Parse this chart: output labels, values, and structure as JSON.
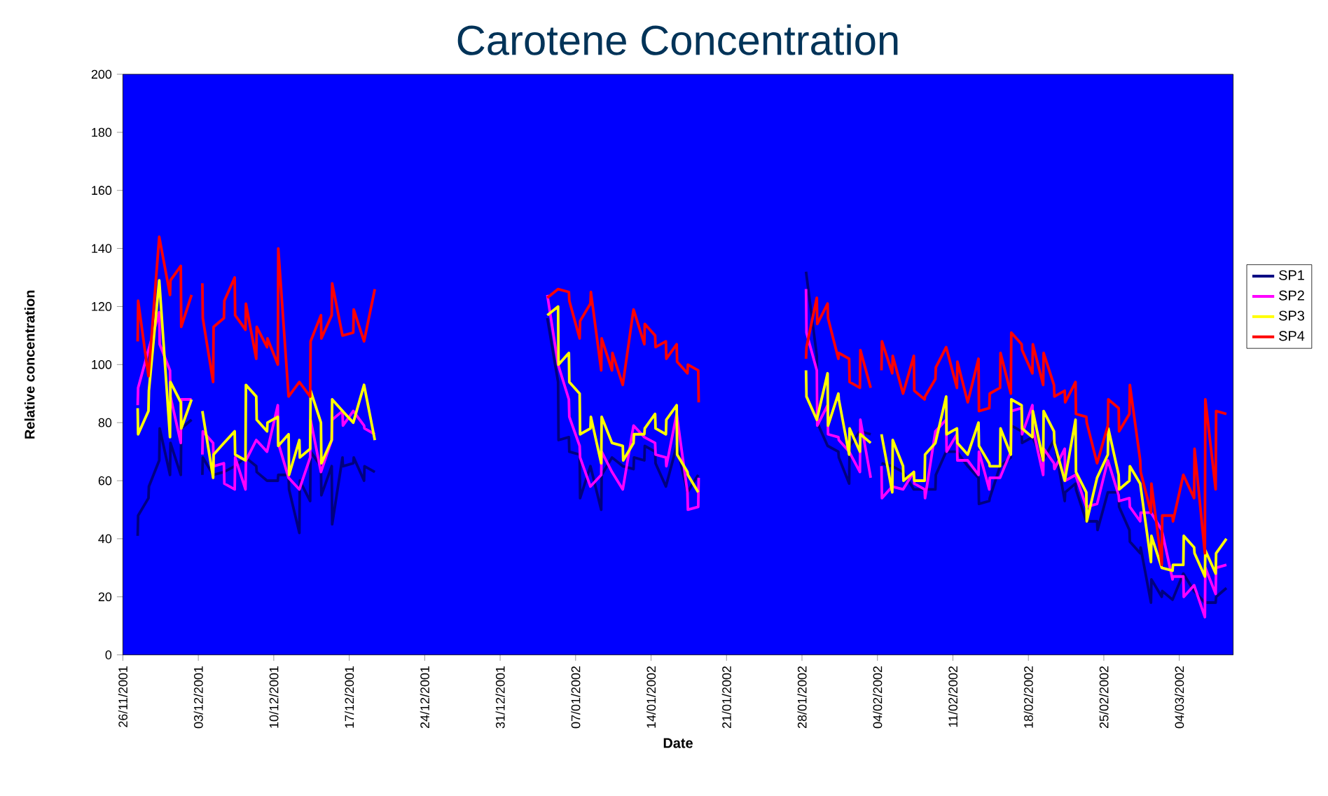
{
  "chart_data": {
    "type": "line",
    "title": "Carotene Concentration",
    "xlabel": "Date",
    "ylabel": "Relative concentration",
    "xlim": [
      "2001-11-26",
      "2002-03-09"
    ],
    "ylim": [
      0,
      200
    ],
    "yticks": [
      0,
      20,
      40,
      60,
      80,
      100,
      120,
      140,
      160,
      180,
      200
    ],
    "xticks": [
      {
        "value": "2001-11-26",
        "label": "26/11/2001"
      },
      {
        "value": "2001-12-03",
        "label": "03/12/2001"
      },
      {
        "value": "2001-12-10",
        "label": "10/12/2001"
      },
      {
        "value": "2001-12-17",
        "label": "17/12/2001"
      },
      {
        "value": "2001-12-24",
        "label": "24/12/2001"
      },
      {
        "value": "2001-12-31",
        "label": "31/12/2001"
      },
      {
        "value": "2002-01-07",
        "label": "07/01/2002"
      },
      {
        "value": "2002-01-14",
        "label": "14/01/2002"
      },
      {
        "value": "2002-01-21",
        "label": "21/01/2002"
      },
      {
        "value": "2002-01-28",
        "label": "28/01/2002"
      },
      {
        "value": "2002-02-04",
        "label": "04/02/2002"
      },
      {
        "value": "2002-02-11",
        "label": "11/02/2002"
      },
      {
        "value": "2002-02-18",
        "label": "18/02/2002"
      },
      {
        "value": "2002-02-25",
        "label": "25/02/2002"
      },
      {
        "value": "2002-03-04",
        "label": "04/03/2002"
      }
    ],
    "legend": "right",
    "series": [
      {
        "name": "SP1",
        "color": "#000080",
        "x": [
          "2001-11-27T09:00",
          "2001-11-27T10:00",
          "2001-11-28T09:00",
          "2001-11-28T10:00",
          "2001-11-29T09:00",
          "2001-11-29T10:00",
          "2001-11-30T09:00",
          "2001-11-30T10:00",
          "2001-12-01T09:00",
          "2001-12-01T10:00",
          "2001-12-02T09:00",
          "2001-12-02T21:00",
          "2001-12-03T09:00",
          "2001-12-03T10:00",
          "2001-12-04T09:00",
          "2001-12-05T09:00",
          "2001-12-06T09:00",
          "2001-12-07T09:00",
          "2001-12-08T09:00",
          "2001-12-08T10:00",
          "2001-12-09T09:00",
          "2001-12-10T09:00",
          "2001-12-10T10:00",
          "2001-12-11T09:00",
          "2001-12-11T10:00",
          "2001-12-12T09:00",
          "2001-12-12T10:00",
          "2001-12-13T09:00",
          "2001-12-13T10:00",
          "2001-12-14T09:00",
          "2001-12-14T10:00",
          "2001-12-15T09:00",
          "2001-12-15T10:00",
          "2001-12-16T09:00",
          "2001-12-16T10:00",
          "2001-12-17T09:00",
          "2001-12-17T10:00",
          "2001-12-18T09:00",
          "2001-12-18T10:00",
          "2001-12-19T09:00",
          "2001-12-25T00:00",
          "2002-01-04T09:00",
          "2002-01-05T09:00",
          "2002-01-05T10:00",
          "2002-01-06T09:00",
          "2002-01-06T10:00",
          "2002-01-07T09:00",
          "2002-01-07T10:00",
          "2002-01-08T09:00",
          "2002-01-09T09:00",
          "2002-01-09T10:00",
          "2002-01-10T09:00",
          "2002-01-11T09:00",
          "2002-01-12T09:00",
          "2002-01-12T10:00",
          "2002-01-13T09:00",
          "2002-01-13T10:00",
          "2002-01-14T09:00",
          "2002-01-14T10:00",
          "2002-01-15T09:00",
          "2002-01-16T09:00",
          "2002-01-17T09:00",
          "2002-01-18T09:00",
          "2002-01-23T00:00",
          "2002-01-28T09:00",
          "2002-01-29T09:00",
          "2002-01-29T10:00",
          "2002-01-30T09:00",
          "2002-01-31T09:00",
          "2002-01-31T10:00",
          "2002-02-01T09:00",
          "2002-02-01T10:00",
          "2002-02-02T09:00",
          "2002-02-03T09:00",
          "2002-02-03T21:00",
          "2002-02-04T09:00",
          "2002-02-05T09:00",
          "2002-02-06T09:00",
          "2002-02-07T09:00",
          "2002-02-08T09:00",
          "2002-02-09T09:00",
          "2002-02-09T10:00",
          "2002-02-10T09:00",
          "2002-02-11T09:00",
          "2002-02-12T09:00",
          "2002-02-13T09:00",
          "2002-02-13T10:00",
          "2002-02-14T09:00",
          "2002-02-14T10:00",
          "2002-02-15T09:00",
          "2002-02-16T09:00",
          "2002-02-16T10:00",
          "2002-02-17T09:00",
          "2002-02-17T10:00",
          "2002-02-18T09:00",
          "2002-02-19T09:00",
          "2002-02-20T09:00",
          "2002-02-21T09:00",
          "2002-02-21T10:00",
          "2002-02-22T09:00",
          "2002-02-22T10:00",
          "2002-02-23T09:00",
          "2002-02-24T09:00",
          "2002-02-24T10:00",
          "2002-02-25T09:00",
          "2002-02-26T09:00",
          "2002-02-26T10:00",
          "2002-02-27T09:00",
          "2002-02-27T10:00",
          "2002-02-28T09:00",
          "2002-02-28T10:00",
          "2002-03-01T09:00",
          "2002-03-01T10:00",
          "2002-03-02T09:00",
          "2002-03-02T10:00",
          "2002-03-03T09:00",
          "2002-03-04T09:00",
          "2002-03-05T09:00",
          "2002-03-06T09:00",
          "2002-03-07T09:00",
          "2002-03-07T10:00",
          "2002-03-08T09:00"
        ],
        "values": [
          41,
          48,
          54,
          58,
          67,
          78,
          62,
          73,
          62,
          78,
          81,
          null,
          62,
          68,
          62,
          63,
          65,
          68,
          65,
          63,
          60,
          60,
          62,
          62,
          57,
          42,
          60,
          53,
          70,
          65,
          55,
          65,
          45,
          68,
          65,
          66,
          68,
          60,
          65,
          63,
          null,
          116,
          94,
          74,
          75,
          70,
          69,
          54,
          65,
          50,
          62,
          68,
          65,
          64,
          68,
          67,
          72,
          70,
          66,
          58,
          72,
          56,
          62,
          null,
          132,
          103,
          80,
          72,
          70,
          68,
          59,
          72,
          77,
          76,
          null,
          66,
          65,
          63,
          57,
          57,
          57,
          62,
          70,
          70,
          65,
          61,
          52,
          53,
          54,
          65,
          68,
          79,
          77,
          73,
          75,
          67,
          74,
          53,
          56,
          59,
          57,
          46,
          46,
          43,
          56,
          56,
          51,
          43,
          39,
          35,
          37,
          18,
          26,
          20,
          22,
          19,
          28,
          22,
          18,
          18,
          20,
          23
        ]
      },
      {
        "name": "SP2",
        "color": "#ff00ff",
        "x": [
          "2001-11-27T09:00",
          "2001-11-27T10:00",
          "2001-11-28T09:00",
          "2001-11-29T09:00",
          "2001-11-29T10:00",
          "2001-11-30T09:00",
          "2001-11-30T10:00",
          "2001-12-01T09:00",
          "2001-12-01T10:00",
          "2001-12-02T09:00",
          "2001-12-02T21:00",
          "2001-12-03T09:00",
          "2001-12-03T10:00",
          "2001-12-04T09:00",
          "2001-12-04T10:00",
          "2001-12-05T09:00",
          "2001-12-05T10:00",
          "2001-12-06T09:00",
          "2001-12-06T10:00",
          "2001-12-07T09:00",
          "2001-12-07T10:00",
          "2001-12-08T09:00",
          "2001-12-09T09:00",
          "2001-12-10T09:00",
          "2001-12-10T10:00",
          "2001-12-11T09:00",
          "2001-12-12T09:00",
          "2001-12-13T09:00",
          "2001-12-13T10:00",
          "2001-12-14T09:00",
          "2001-12-15T09:00",
          "2001-12-15T10:00",
          "2001-12-16T09:00",
          "2001-12-16T10:00",
          "2001-12-17T09:00",
          "2001-12-18T09:00",
          "2001-12-18T10:00",
          "2001-12-19T09:00",
          "2001-12-25T00:00",
          "2002-01-04T09:00",
          "2002-01-05T09:00",
          "2002-01-06T09:00",
          "2002-01-06T10:00",
          "2002-01-07T09:00",
          "2002-01-07T10:00",
          "2002-01-08T09:00",
          "2002-01-09T09:00",
          "2002-01-09T10:00",
          "2002-01-10T09:00",
          "2002-01-11T09:00",
          "2002-01-12T09:00",
          "2002-01-13T09:00",
          "2002-01-14T09:00",
          "2002-01-14T10:00",
          "2002-01-15T09:00",
          "2002-01-15T10:00",
          "2002-01-16T09:00",
          "2002-01-17T09:00",
          "2002-01-17T10:00",
          "2002-01-18T09:00",
          "2002-01-18T10:00",
          "2002-01-23T00:00",
          "2002-01-28T09:00",
          "2002-01-28T10:00",
          "2002-01-29T09:00",
          "2002-01-29T10:00",
          "2002-01-30T09:00",
          "2002-01-30T10:00",
          "2002-01-31T09:00",
          "2002-01-31T10:00",
          "2002-02-01T09:00",
          "2002-02-02T09:00",
          "2002-02-02T10:00",
          "2002-02-03T09:00",
          "2002-02-03T21:00",
          "2002-02-04T09:00",
          "2002-02-04T10:00",
          "2002-02-05T09:00",
          "2002-02-06T09:00",
          "2002-02-07T09:00",
          "2002-02-07T10:00",
          "2002-02-08T09:00",
          "2002-02-08T10:00",
          "2002-02-09T09:00",
          "2002-02-10T09:00",
          "2002-02-10T10:00",
          "2002-02-11T09:00",
          "2002-02-11T10:00",
          "2002-02-12T09:00",
          "2002-02-13T09:00",
          "2002-02-13T10:00",
          "2002-02-14T09:00",
          "2002-02-14T10:00",
          "2002-02-15T09:00",
          "2002-02-16T09:00",
          "2002-02-16T10:00",
          "2002-02-17T09:00",
          "2002-02-17T10:00",
          "2002-02-18T09:00",
          "2002-02-18T10:00",
          "2002-02-19T09:00",
          "2002-02-19T10:00",
          "2002-02-20T09:00",
          "2002-02-20T10:00",
          "2002-02-21T09:00",
          "2002-02-21T10:00",
          "2002-02-22T09:00",
          "2002-02-23T09:00",
          "2002-02-24T09:00",
          "2002-02-25T09:00",
          "2002-02-26T09:00",
          "2002-02-26T10:00",
          "2002-02-27T09:00",
          "2002-02-27T10:00",
          "2002-02-28T09:00",
          "2002-02-28T10:00",
          "2002-03-01T09:00",
          "2002-03-02T09:00",
          "2002-03-03T09:00",
          "2002-03-03T10:00",
          "2002-03-04T09:00",
          "2002-03-04T10:00",
          "2002-03-05T09:00",
          "2002-03-06T09:00",
          "2002-03-06T10:00",
          "2002-03-07T09:00",
          "2002-03-07T10:00",
          "2002-03-08T09:00"
        ],
        "values": [
          86,
          92,
          105,
          118,
          107,
          98,
          89,
          73,
          88,
          88,
          null,
          69,
          77,
          73,
          65,
          66,
          59,
          57,
          68,
          57,
          67,
          74,
          70,
          86,
          73,
          61,
          57,
          68,
          81,
          63,
          74,
          81,
          84,
          79,
          84,
          79,
          78,
          76,
          null,
          124,
          100,
          88,
          82,
          72,
          68,
          58,
          62,
          70,
          63,
          57,
          79,
          75,
          73,
          69,
          68,
          65,
          83,
          56,
          50,
          51,
          61,
          null,
          126,
          111,
          98,
          79,
          86,
          76,
          75,
          74,
          70,
          63,
          81,
          61,
          null,
          65,
          54,
          58,
          57,
          63,
          59,
          57,
          54,
          77,
          81,
          70,
          76,
          67,
          67,
          62,
          70,
          57,
          61,
          61,
          70,
          84,
          85,
          76,
          86,
          78,
          62,
          71,
          66,
          64,
          71,
          60,
          62,
          51,
          52,
          67,
          55,
          53,
          54,
          51,
          46,
          49,
          49,
          43,
          26,
          27,
          27,
          20,
          24,
          13,
          30,
          21,
          30,
          31
        ]
      },
      {
        "name": "SP3",
        "color": "#ffff00",
        "x": [
          "2001-11-27T09:00",
          "2001-11-27T10:00",
          "2001-11-28T09:00",
          "2001-11-28T10:00",
          "2001-11-29T09:00",
          "2001-11-30T09:00",
          "2001-11-30T10:00",
          "2001-12-01T09:00",
          "2001-12-01T10:00",
          "2001-12-02T09:00",
          "2001-12-02T21:00",
          "2001-12-03T09:00",
          "2001-12-04T09:00",
          "2001-12-04T10:00",
          "2001-12-05T09:00",
          "2001-12-06T09:00",
          "2001-12-06T10:00",
          "2001-12-07T09:00",
          "2001-12-07T10:00",
          "2001-12-08T09:00",
          "2001-12-08T10:00",
          "2001-12-09T09:00",
          "2001-12-09T10:00",
          "2001-12-10T09:00",
          "2001-12-10T10:00",
          "2001-12-11T09:00",
          "2001-12-11T10:00",
          "2001-12-12T09:00",
          "2001-12-12T10:00",
          "2001-12-13T09:00",
          "2001-12-13T10:00",
          "2001-12-14T09:00",
          "2001-12-14T10:00",
          "2001-12-15T09:00",
          "2001-12-15T10:00",
          "2001-12-16T09:00",
          "2001-12-17T09:00",
          "2001-12-18T09:00",
          "2001-12-19T09:00",
          "2001-12-25T00:00",
          "2002-01-04T09:00",
          "2002-01-05T09:00",
          "2002-01-05T10:00",
          "2002-01-06T09:00",
          "2002-01-06T10:00",
          "2002-01-07T09:00",
          "2002-01-07T10:00",
          "2002-01-08T09:00",
          "2002-01-08T10:00",
          "2002-01-09T09:00",
          "2002-01-09T10:00",
          "2002-01-10T09:00",
          "2002-01-11T09:00",
          "2002-01-11T10:00",
          "2002-01-12T09:00",
          "2002-01-12T10:00",
          "2002-01-13T09:00",
          "2002-01-13T10:00",
          "2002-01-14T09:00",
          "2002-01-14T10:00",
          "2002-01-15T09:00",
          "2002-01-15T10:00",
          "2002-01-16T09:00",
          "2002-01-16T10:00",
          "2002-01-17T09:00",
          "2002-01-17T10:00",
          "2002-01-18T09:00",
          "2002-01-23T00:00",
          "2002-01-28T09:00",
          "2002-01-28T10:00",
          "2002-01-29T09:00",
          "2002-01-30T09:00",
          "2002-01-30T10:00",
          "2002-01-31T09:00",
          "2002-01-31T10:00",
          "2002-02-01T09:00",
          "2002-02-01T10:00",
          "2002-02-02T09:00",
          "2002-02-02T10:00",
          "2002-02-03T09:00",
          "2002-02-03T21:00",
          "2002-02-04T09:00",
          "2002-02-05T09:00",
          "2002-02-05T10:00",
          "2002-02-06T09:00",
          "2002-02-06T10:00",
          "2002-02-07T09:00",
          "2002-02-07T10:00",
          "2002-02-08T09:00",
          "2002-02-08T10:00",
          "2002-02-09T09:00",
          "2002-02-10T09:00",
          "2002-02-10T10:00",
          "2002-02-11T09:00",
          "2002-02-11T10:00",
          "2002-02-12T09:00",
          "2002-02-13T09:00",
          "2002-02-13T10:00",
          "2002-02-14T09:00",
          "2002-02-14T10:00",
          "2002-02-15T09:00",
          "2002-02-15T10:00",
          "2002-02-16T09:00",
          "2002-02-16T10:00",
          "2002-02-17T09:00",
          "2002-02-17T10:00",
          "2002-02-18T09:00",
          "2002-02-18T10:00",
          "2002-02-19T09:00",
          "2002-02-19T10:00",
          "2002-02-20T09:00",
          "2002-02-20T10:00",
          "2002-02-21T09:00",
          "2002-02-22T09:00",
          "2002-02-22T10:00",
          "2002-02-23T09:00",
          "2002-02-23T10:00",
          "2002-02-24T09:00",
          "2002-02-25T09:00",
          "2002-02-25T10:00",
          "2002-02-26T09:00",
          "2002-02-26T10:00",
          "2002-02-27T09:00",
          "2002-02-27T10:00",
          "2002-02-28T09:00",
          "2002-03-01T09:00",
          "2002-03-01T10:00",
          "2002-03-02T09:00",
          "2002-03-03T09:00",
          "2002-03-03T10:00",
          "2002-03-04T09:00",
          "2002-03-04T10:00",
          "2002-03-05T09:00",
          "2002-03-05T10:00",
          "2002-03-06T09:00",
          "2002-03-06T10:00",
          "2002-03-07T09:00",
          "2002-03-07T10:00",
          "2002-03-08T09:00"
        ],
        "values": [
          85,
          76,
          84,
          91,
          129,
          75,
          94,
          87,
          78,
          88,
          null,
          84,
          61,
          69,
          73,
          77,
          69,
          67,
          93,
          89,
          81,
          77,
          80,
          82,
          72,
          76,
          62,
          74,
          68,
          71,
          91,
          80,
          66,
          74,
          88,
          84,
          80,
          93,
          74,
          null,
          117,
          120,
          100,
          104,
          94,
          90,
          76,
          78,
          82,
          66,
          82,
          73,
          72,
          67,
          73,
          76,
          76,
          78,
          83,
          78,
          76,
          81,
          86,
          69,
          63,
          62,
          56,
          null,
          98,
          89,
          81,
          97,
          79,
          90,
          88,
          69,
          78,
          70,
          76,
          73,
          null,
          76,
          56,
          74,
          65,
          60,
          63,
          60,
          60,
          69,
          73,
          89,
          76,
          78,
          73,
          69,
          80,
          72,
          66,
          65,
          65,
          78,
          69,
          88,
          86,
          78,
          75,
          84,
          67,
          84,
          77,
          73,
          60,
          81,
          63,
          56,
          46,
          61,
          69,
          78,
          62,
          57,
          60,
          65,
          59,
          32,
          41,
          30,
          29,
          31,
          31,
          41,
          37,
          35,
          27,
          36,
          28,
          35,
          40
        ]
      },
      {
        "name": "SP4",
        "color": "#ff0000",
        "x": [
          "2001-11-27T09:00",
          "2001-11-27T10:00",
          "2001-11-28T09:00",
          "2001-11-29T09:00",
          "2001-11-30T09:00",
          "2001-11-30T10:00",
          "2001-12-01T09:00",
          "2001-12-01T10:00",
          "2001-12-02T09:00",
          "2001-12-02T21:00",
          "2001-12-03T09:00",
          "2001-12-03T10:00",
          "2001-12-04T09:00",
          "2001-12-04T10:00",
          "2001-12-05T09:00",
          "2001-12-05T10:00",
          "2001-12-06T09:00",
          "2001-12-06T10:00",
          "2001-12-07T09:00",
          "2001-12-07T10:00",
          "2001-12-08T09:00",
          "2001-12-08T10:00",
          "2001-12-09T09:00",
          "2001-12-09T10:00",
          "2001-12-10T09:00",
          "2001-12-10T10:00",
          "2001-12-11T09:00",
          "2001-12-12T09:00",
          "2001-12-13T09:00",
          "2001-12-13T10:00",
          "2001-12-14T09:00",
          "2001-12-14T10:00",
          "2001-12-15T09:00",
          "2001-12-15T10:00",
          "2001-12-16T09:00",
          "2001-12-17T09:00",
          "2001-12-17T10:00",
          "2001-12-18T09:00",
          "2001-12-19T09:00",
          "2001-12-25T00:00",
          "2002-01-04T09:00",
          "2002-01-05T09:00",
          "2002-01-06T09:00",
          "2002-01-06T10:00",
          "2002-01-07T09:00",
          "2002-01-07T10:00",
          "2002-01-08T09:00",
          "2002-01-08T10:00",
          "2002-01-09T09:00",
          "2002-01-09T10:00",
          "2002-01-10T09:00",
          "2002-01-10T10:00",
          "2002-01-11T09:00",
          "2002-01-12T09:00",
          "2002-01-13T09:00",
          "2002-01-13T10:00",
          "2002-01-14T09:00",
          "2002-01-14T10:00",
          "2002-01-15T09:00",
          "2002-01-15T10:00",
          "2002-01-16T09:00",
          "2002-01-16T10:00",
          "2002-01-17T09:00",
          "2002-01-17T10:00",
          "2002-01-18T09:00",
          "2002-01-18T10:00",
          "2002-01-23T00:00",
          "2002-01-28T09:00",
          "2002-01-28T10:00",
          "2002-01-29T09:00",
          "2002-01-29T10:00",
          "2002-01-30T09:00",
          "2002-01-30T10:00",
          "2002-01-31T09:00",
          "2002-01-31T10:00",
          "2002-02-01T09:00",
          "2002-02-01T10:00",
          "2002-02-02T09:00",
          "2002-02-02T10:00",
          "2002-02-03T09:00",
          "2002-02-03T21:00",
          "2002-02-04T09:00",
          "2002-02-04T10:00",
          "2002-02-05T09:00",
          "2002-02-05T10:00",
          "2002-02-06T09:00",
          "2002-02-07T09:00",
          "2002-02-07T10:00",
          "2002-02-08T09:00",
          "2002-02-08T10:00",
          "2002-02-09T09:00",
          "2002-02-09T10:00",
          "2002-02-10T09:00",
          "2002-02-11T09:00",
          "2002-02-11T10:00",
          "2002-02-12T09:00",
          "2002-02-13T09:00",
          "2002-02-13T10:00",
          "2002-02-14T09:00",
          "2002-02-14T10:00",
          "2002-02-15T09:00",
          "2002-02-15T10:00",
          "2002-02-16T09:00",
          "2002-02-16T10:00",
          "2002-02-17T09:00",
          "2002-02-17T10:00",
          "2002-02-18T09:00",
          "2002-02-18T10:00",
          "2002-02-19T09:00",
          "2002-02-19T10:00",
          "2002-02-20T09:00",
          "2002-02-20T10:00",
          "2002-02-21T09:00",
          "2002-02-21T10:00",
          "2002-02-22T09:00",
          "2002-02-22T10:00",
          "2002-02-23T09:00",
          "2002-02-23T10:00",
          "2002-02-24T09:00",
          "2002-02-25T09:00",
          "2002-02-25T10:00",
          "2002-02-26T09:00",
          "2002-02-26T10:00",
          "2002-02-27T09:00",
          "2002-02-27T10:00",
          "2002-02-28T09:00",
          "2002-02-28T10:00",
          "2002-03-01T09:00",
          "2002-03-01T10:00",
          "2002-03-02T09:00",
          "2002-03-02T10:00",
          "2002-03-03T09:00",
          "2002-03-03T10:00",
          "2002-03-04T09:00",
          "2002-03-05T09:00",
          "2002-03-05T10:00",
          "2002-03-06T09:00",
          "2002-03-06T10:00",
          "2002-03-07T09:00",
          "2002-03-07T10:00",
          "2002-03-08T09:00"
        ],
        "values": [
          108,
          122,
          96,
          144,
          124,
          129,
          134,
          113,
          124,
          null,
          128,
          116,
          94,
          113,
          116,
          122,
          130,
          117,
          112,
          121,
          102,
          113,
          106,
          109,
          100,
          140,
          89,
          94,
          89,
          108,
          117,
          109,
          117,
          128,
          110,
          111,
          119,
          108,
          126,
          null,
          123,
          126,
          125,
          122,
          109,
          115,
          121,
          125,
          98,
          109,
          98,
          104,
          93,
          119,
          107,
          114,
          110,
          106,
          108,
          102,
          107,
          101,
          97,
          100,
          98,
          87,
          null,
          102,
          106,
          123,
          114,
          121,
          116,
          102,
          104,
          102,
          94,
          92,
          105,
          92,
          null,
          98,
          108,
          97,
          103,
          90,
          103,
          91,
          88,
          89,
          95,
          99,
          106,
          92,
          101,
          87,
          102,
          84,
          85,
          90,
          92,
          104,
          90,
          111,
          107,
          105,
          97,
          107,
          93,
          104,
          93,
          89,
          91,
          87,
          94,
          83,
          82,
          80,
          66,
          79,
          88,
          85,
          77,
          83,
          93,
          67,
          63,
          49,
          59,
          31,
          48,
          48,
          46,
          62,
          54,
          71,
          35,
          88,
          57,
          84,
          83
        ]
      }
    ]
  }
}
